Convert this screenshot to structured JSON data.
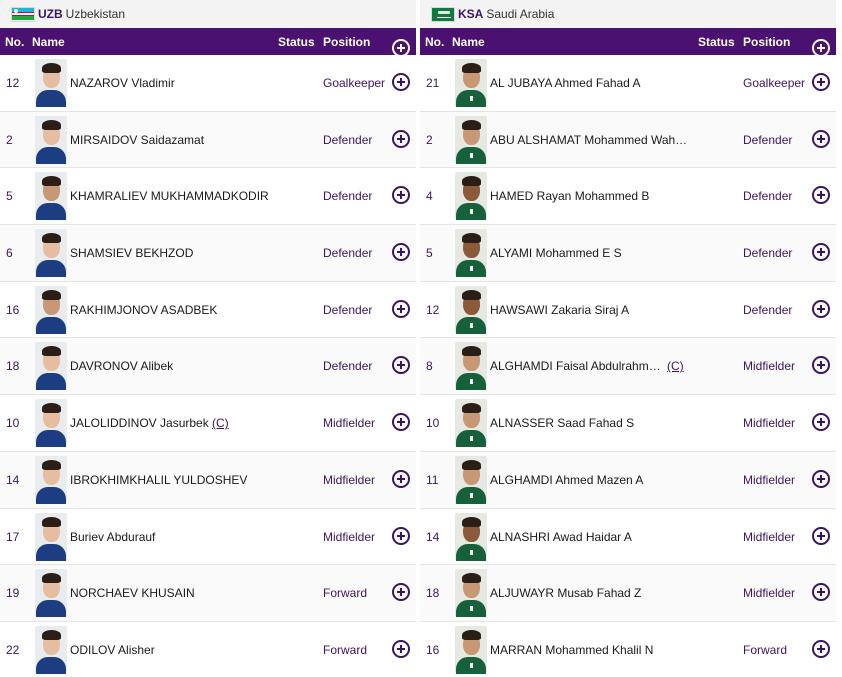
{
  "teams": [
    {
      "code": "UZB",
      "name": "Uzbekistan",
      "flag_icon": "uzbekistan-flag",
      "headers": {
        "no": "No.",
        "name": "Name",
        "status": "Status",
        "position": "Position"
      },
      "players": [
        {
          "no": "12",
          "name": "NAZAROV Vladimir",
          "captain": "",
          "position": "Goalkeeper",
          "skin": "l"
        },
        {
          "no": "2",
          "name": "MIRSAIDOV Saidazamat",
          "captain": "",
          "position": "Defender",
          "skin": "l"
        },
        {
          "no": "5",
          "name": "KHAMRALIEV MUKHAMMADKODIR",
          "captain": "",
          "position": "Defender",
          "skin": "m"
        },
        {
          "no": "6",
          "name": "SHAMSIEV BEKHZOD",
          "captain": "",
          "position": "Defender",
          "skin": "l"
        },
        {
          "no": "16",
          "name": "RAKHIMJONOV ASADBEK",
          "captain": "",
          "position": "Defender",
          "skin": "m"
        },
        {
          "no": "18",
          "name": "DAVRONOV Alibek",
          "captain": "",
          "position": "Defender",
          "skin": "l"
        },
        {
          "no": "10",
          "name": "JALOLIDDINOV Jasurbek",
          "captain": "(C)",
          "position": "Midfielder",
          "skin": "l"
        },
        {
          "no": "14",
          "name": "IBROKHIMKHALIL YULDOSHEV",
          "captain": "",
          "position": "Midfielder",
          "skin": "l"
        },
        {
          "no": "17",
          "name": "Buriev Abdurauf",
          "captain": "",
          "position": "Midfielder",
          "skin": "l"
        },
        {
          "no": "19",
          "name": "NORCHAEV KHUSAIN",
          "captain": "",
          "position": "Forward",
          "skin": "l"
        },
        {
          "no": "22",
          "name": "ODILOV Alisher",
          "captain": "",
          "position": "Forward",
          "skin": "l"
        }
      ]
    },
    {
      "code": "KSA",
      "name": "Saudi Arabia",
      "flag_icon": "saudi-arabia-flag",
      "headers": {
        "no": "No.",
        "name": "Name",
        "status": "Status",
        "position": "Position"
      },
      "players": [
        {
          "no": "21",
          "name": "AL JUBAYA Ahmed Fahad A",
          "captain": "",
          "position": "Goalkeeper",
          "skin": "m"
        },
        {
          "no": "2",
          "name": "ABU ALSHAMAT Mohammed Wah…",
          "captain": "",
          "position": "Defender",
          "skin": "m"
        },
        {
          "no": "4",
          "name": "HAMED Rayan Mohammed B",
          "captain": "",
          "position": "Defender",
          "skin": "d"
        },
        {
          "no": "5",
          "name": "ALYAMI Mohammed E S",
          "captain": "",
          "position": "Defender",
          "skin": "d"
        },
        {
          "no": "12",
          "name": "HAWSAWI Zakaria Siraj A",
          "captain": "",
          "position": "Defender",
          "skin": "d"
        },
        {
          "no": "8",
          "name": "ALGHAMDI Faisal Abdulrahm…",
          "captain": "(C)",
          "position": "Midfielder",
          "skin": "m"
        },
        {
          "no": "10",
          "name": "ALNASSER Saad Fahad S",
          "captain": "",
          "position": "Midfielder",
          "skin": "m"
        },
        {
          "no": "11",
          "name": "ALGHAMDI Ahmed Mazen A",
          "captain": "",
          "position": "Midfielder",
          "skin": "m"
        },
        {
          "no": "14",
          "name": "ALNASHRI Awad Haidar A",
          "captain": "",
          "position": "Midfielder",
          "skin": "d"
        },
        {
          "no": "18",
          "name": "ALJUWAYR Musab Fahad Z",
          "captain": "",
          "position": "Midfielder",
          "skin": "m"
        },
        {
          "no": "16",
          "name": "MARRAN Mohammed Khalil N",
          "captain": "",
          "position": "Forward",
          "skin": "m"
        }
      ]
    }
  ],
  "icons": {
    "add": "add-circle-icon",
    "photo": "player-photo"
  }
}
